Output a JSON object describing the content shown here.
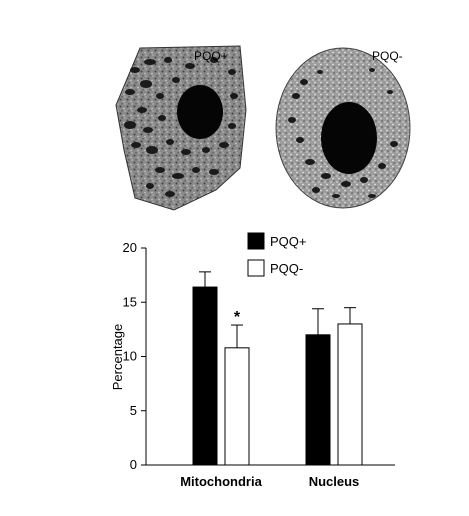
{
  "micrographs": [
    {
      "label": "PQQ+"
    },
    {
      "label": "PQQ-"
    }
  ],
  "chart_data": {
    "type": "bar",
    "categories": [
      "Mitochondria",
      "Nucleus"
    ],
    "series": [
      {
        "name": "PQQ+",
        "values": [
          16.4,
          12.0
        ],
        "errors": [
          1.4,
          2.4
        ],
        "color": "#000000"
      },
      {
        "name": "PQQ-",
        "values": [
          10.8,
          13.0
        ],
        "errors": [
          2.1,
          1.5
        ],
        "color": "#ffffff"
      }
    ],
    "significance": [
      {
        "category": "Mitochondria",
        "series": "PQQ-",
        "mark": "*"
      }
    ],
    "ylabel": "Percentage",
    "ylim": [
      0,
      20
    ],
    "yticks": [
      "0",
      "5",
      "10",
      "15",
      "20"
    ],
    "legend_placement": "top-center",
    "grid": false
  }
}
